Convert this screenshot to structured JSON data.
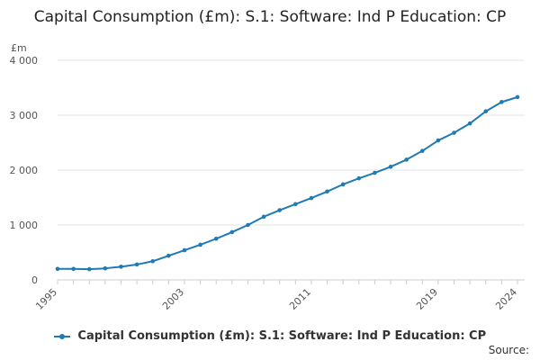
{
  "chart_data": {
    "type": "line",
    "title": "Capital Consumption (£m): S.1: Software: Ind P Education: CP",
    "ylabel": "£m",
    "xlabel": "",
    "ylim": [
      0,
      4000
    ],
    "xlim": [
      1995,
      2024
    ],
    "y_ticks": [
      {
        "value": 0,
        "label": "0"
      },
      {
        "value": 1000,
        "label": "1 000"
      },
      {
        "value": 2000,
        "label": "2 000"
      },
      {
        "value": 3000,
        "label": "3 000"
      },
      {
        "value": 4000,
        "label": "4 000"
      }
    ],
    "x_ticks": [
      {
        "value": 1995,
        "label": "1995"
      },
      {
        "value": 2003,
        "label": "2003"
      },
      {
        "value": 2011,
        "label": "2011"
      },
      {
        "value": 2019,
        "label": "2019"
      },
      {
        "value": 2024,
        "label": "2024"
      }
    ],
    "grid": true,
    "legend_position": "bottom",
    "series": [
      {
        "name": "Capital Consumption (£m): S.1: Software: Ind P Education: CP",
        "color": "#1f7ab5",
        "x": [
          1995,
          1996,
          1997,
          1998,
          1999,
          2000,
          2001,
          2002,
          2003,
          2004,
          2005,
          2006,
          2007,
          2008,
          2009,
          2010,
          2011,
          2012,
          2013,
          2014,
          2015,
          2016,
          2017,
          2018,
          2019,
          2020,
          2021,
          2022,
          2023,
          2024
        ],
        "values": [
          200,
          200,
          195,
          210,
          240,
          280,
          340,
          440,
          540,
          640,
          750,
          870,
          1000,
          1150,
          1270,
          1380,
          1490,
          1610,
          1740,
          1850,
          1950,
          2060,
          2190,
          2350,
          2540,
          2680,
          2850,
          3070,
          3240,
          3330
        ]
      }
    ]
  },
  "legend": {
    "label": "Capital Consumption (£m): S.1: Software: Ind P Education: CP"
  },
  "source": {
    "label": "Source:"
  }
}
